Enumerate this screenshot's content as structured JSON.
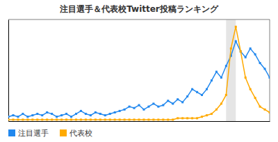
{
  "chart_data": {
    "type": "line",
    "title": "注目選手＆代表校Twitter投稿ランキング",
    "x": [
      0,
      1,
      2,
      3,
      4,
      5,
      6,
      7,
      8,
      9,
      10,
      11,
      12,
      13,
      14,
      15,
      16,
      17,
      18,
      19,
      20,
      21,
      22,
      23,
      24,
      25,
      26,
      27,
      28,
      29,
      30,
      31,
      32,
      33,
      34,
      35,
      36,
      37,
      38,
      39,
      40,
      41,
      42,
      43,
      44,
      45,
      46,
      47,
      48,
      49,
      50,
      51,
      52,
      53,
      54
    ],
    "series": [
      {
        "name": "注目選手",
        "color": "#2288ee",
        "marker": "square",
        "line_style": "solid",
        "values": [
          3,
          4,
          3,
          5,
          3,
          4,
          5,
          4,
          6,
          5,
          3,
          4,
          5,
          3,
          5,
          7,
          5,
          4,
          6,
          5,
          4,
          5,
          6,
          7,
          8,
          10,
          9,
          11,
          8,
          10,
          12,
          10,
          11,
          14,
          12,
          15,
          13,
          17,
          22,
          20,
          18,
          22,
          28,
          34,
          30,
          38,
          45,
          55,
          48,
          44,
          50,
          46,
          40,
          36,
          30
        ]
      },
      {
        "name": "代表校",
        "color": "#ffaa00",
        "marker": "square",
        "line_style": "solid",
        "values": [
          1,
          1,
          1,
          1,
          1,
          1,
          1,
          1,
          1,
          1,
          1,
          1,
          1,
          1,
          1,
          1,
          1,
          1,
          1,
          1,
          1,
          1,
          1,
          1,
          1,
          1,
          1,
          1,
          1,
          1,
          1,
          1,
          1,
          1,
          1,
          2,
          2,
          2,
          2,
          2,
          3,
          4,
          5,
          8,
          12,
          18,
          50,
          65,
          48,
          30,
          22,
          16,
          10,
          8,
          6
        ]
      }
    ],
    "shaded_range": [
      45,
      47
    ],
    "xlim": [
      0,
      54
    ],
    "xticks": [],
    "ylim": [
      0,
      70
    ],
    "yticks": [],
    "tick_labels": false,
    "grid": false,
    "legend": "bottom-left"
  }
}
